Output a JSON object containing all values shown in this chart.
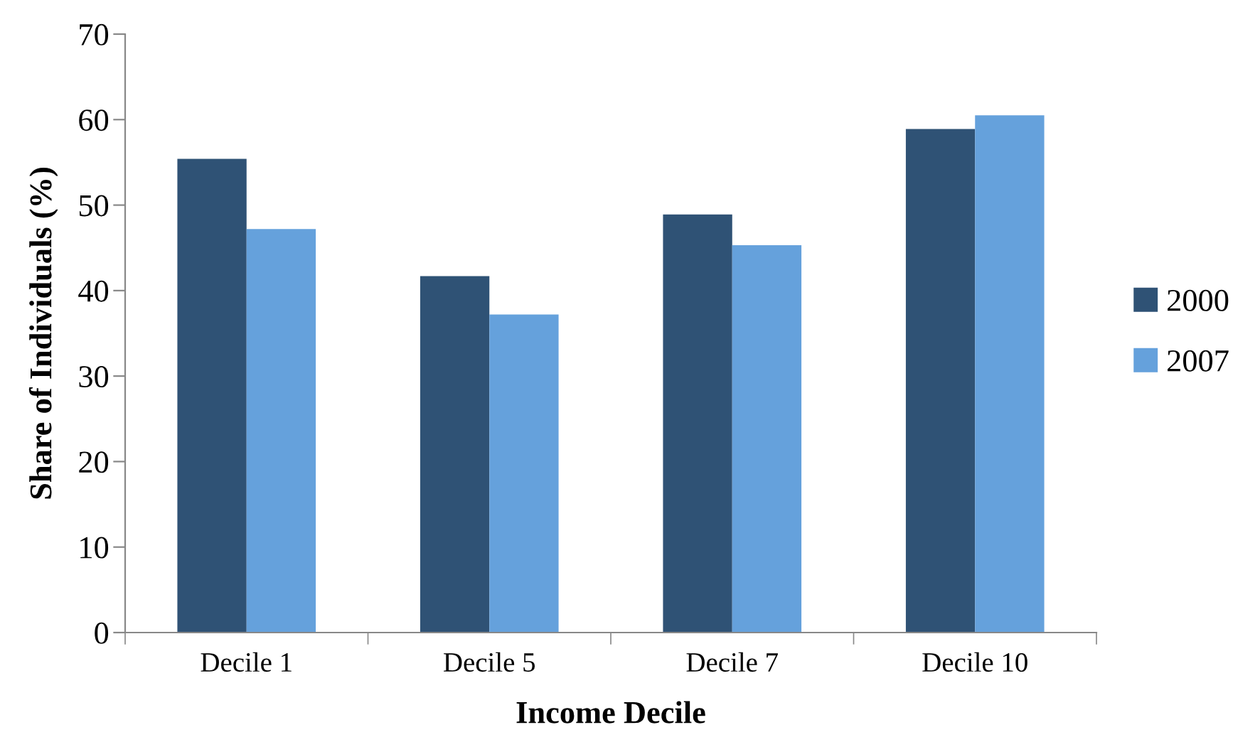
{
  "chart_data": {
    "type": "bar",
    "xlabel": "Income Decile",
    "ylabel": "Share of Individuals (%)",
    "categories": [
      "Decile 1",
      "Decile 5",
      "Decile 7",
      "Decile 10"
    ],
    "series": [
      {
        "name": "2000",
        "color": "#2f5275",
        "values": [
          55.4,
          41.7,
          48.9,
          58.9
        ]
      },
      {
        "name": "2007",
        "color": "#65a1dc",
        "values": [
          47.2,
          37.2,
          45.3,
          60.5
        ]
      }
    ],
    "ylim": [
      0,
      70
    ],
    "yticks": [
      0,
      10,
      20,
      30,
      40,
      50,
      60,
      70
    ],
    "grid": false,
    "legend": "right"
  }
}
